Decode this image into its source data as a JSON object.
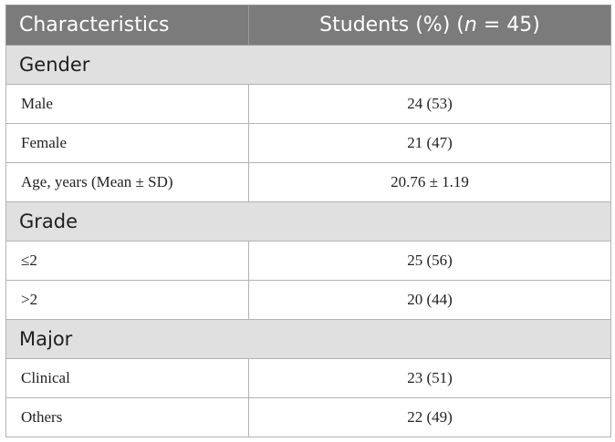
{
  "header": {
    "col1": "Characteristics",
    "col2_prefix": "Students (%) (",
    "col2_n": "n",
    "col2_suffix": " = 45)"
  },
  "sections": {
    "gender": {
      "title": "Gender",
      "rows": [
        {
          "label": "Male",
          "value": "24 (53)"
        },
        {
          "label": "Female",
          "value": "21 (47)"
        },
        {
          "label": "Age, years (Mean ± SD)",
          "value": "20.76 ± 1.19"
        }
      ]
    },
    "grade": {
      "title": "Grade",
      "rows": [
        {
          "label": "≤2",
          "value": "25 (56)"
        },
        {
          "label": ">2",
          "value": "20 (44)"
        }
      ]
    },
    "major": {
      "title": "Major",
      "rows": [
        {
          "label": "Clinical",
          "value": "23 (51)"
        },
        {
          "label": "Others",
          "value": "22 (49)"
        }
      ]
    }
  }
}
